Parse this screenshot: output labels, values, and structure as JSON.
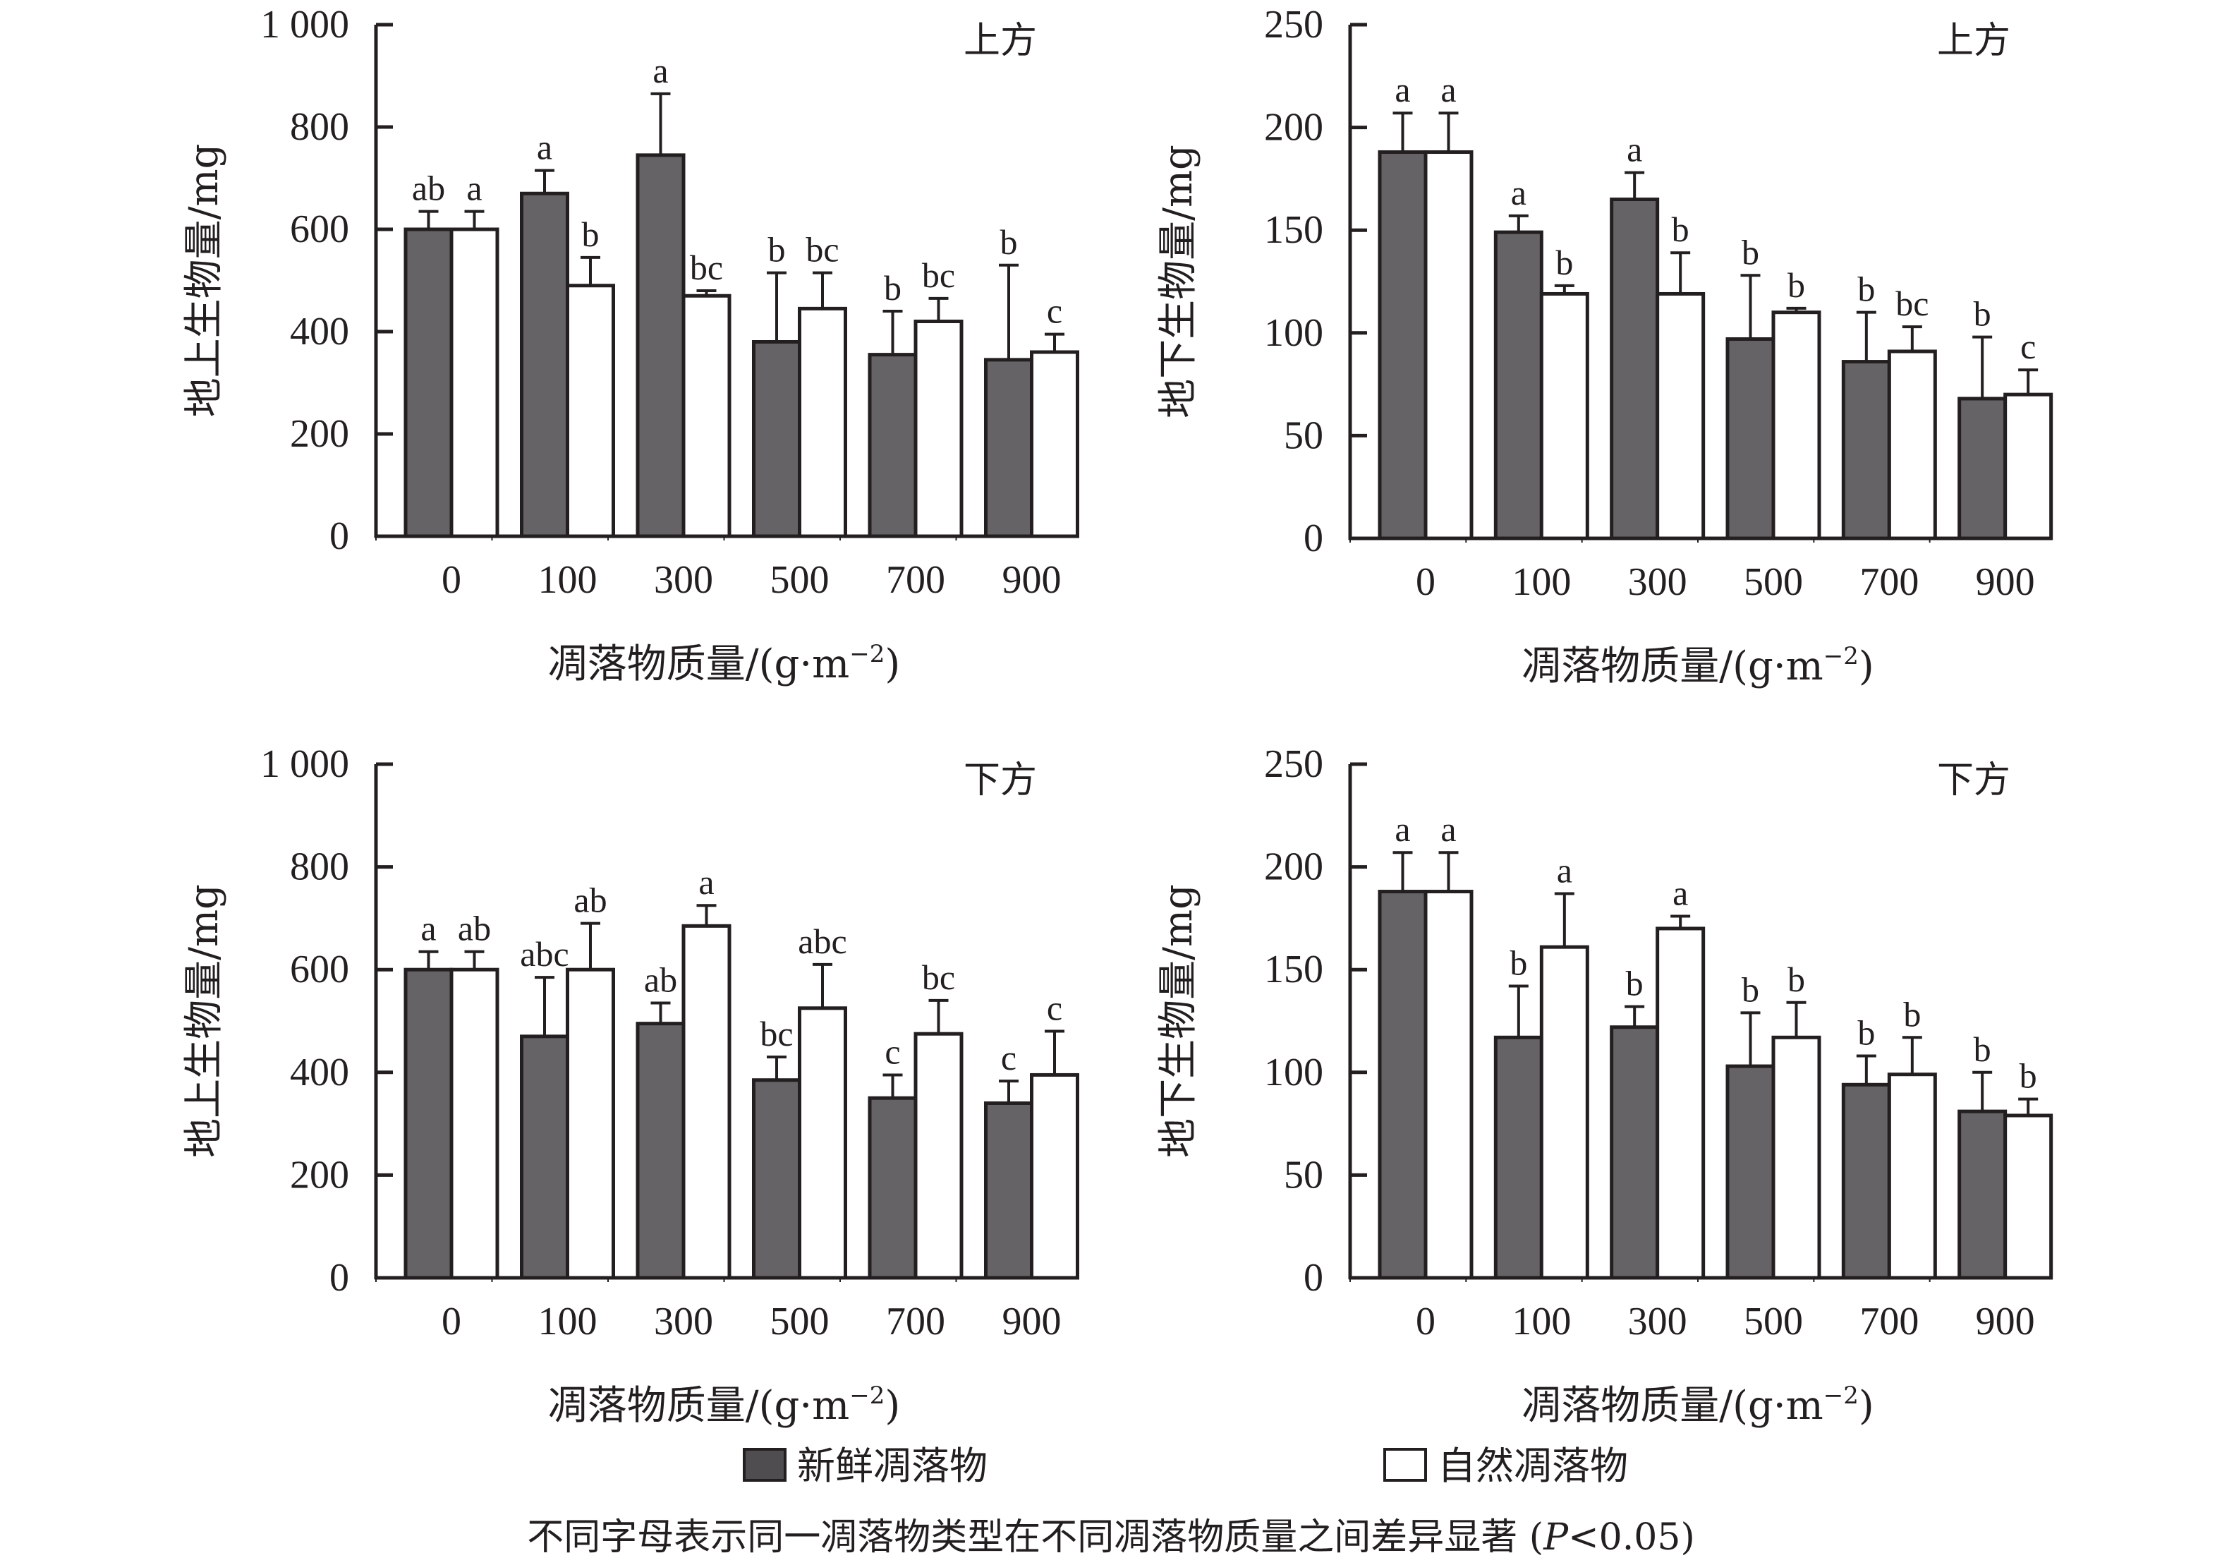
{
  "colors": {
    "fresh": "#656365",
    "natural": "#ffffff",
    "stroke": "#231f20"
  },
  "legend": {
    "items": [
      {
        "label": "新鲜凋落物",
        "color": "#656365"
      },
      {
        "label": "自然凋落物",
        "color": "#ffffff"
      }
    ]
  },
  "note": {
    "text_main": "不同字母表示同一凋落物类型在不同凋落物质量之间差异显著 (",
    "p_symbol": "P",
    "text_tail": "<0.05)"
  },
  "chart_data": [
    {
      "type": "bar",
      "panel": "top-left",
      "title": "上方",
      "xlabel": "凋落物质量/(g·m⁻²)",
      "xlabel_main": "凋落物质量/(g·m",
      "xlabel_sup": "−2",
      "xlabel_close": ")",
      "ylabel": "地上生物量/mg",
      "ylim": [
        0,
        1000
      ],
      "yticks": [
        0,
        200,
        400,
        600,
        800,
        1000
      ],
      "ytick_labels": [
        "0",
        "200",
        "400",
        "600",
        "800",
        "1 000"
      ],
      "categories": [
        "0",
        "100",
        "300",
        "500",
        "700",
        "900"
      ],
      "series": [
        {
          "name": "新鲜凋落物",
          "values": [
            600,
            670,
            745,
            380,
            355,
            345
          ],
          "error_upper": [
            635,
            715,
            865,
            515,
            440,
            530
          ],
          "letters": [
            "ab",
            "a",
            "a",
            "b",
            "b",
            "b"
          ]
        },
        {
          "name": "自然凋落物",
          "values": [
            600,
            490,
            470,
            445,
            420,
            360
          ],
          "error_upper": [
            635,
            545,
            480,
            515,
            465,
            395
          ],
          "letters": [
            "a",
            "b",
            "bc",
            "bc",
            "bc",
            "c"
          ]
        }
      ]
    },
    {
      "type": "bar",
      "panel": "top-right",
      "title": "上方",
      "xlabel": "凋落物质量/(g·m⁻²)",
      "xlabel_main": "凋落物质量/(g·m",
      "xlabel_sup": "−2",
      "xlabel_close": ")",
      "ylabel": "地下生物量/mg",
      "ylim": [
        0,
        250
      ],
      "yticks": [
        0,
        50,
        100,
        150,
        200,
        250
      ],
      "ytick_labels": [
        "0",
        "50",
        "100",
        "150",
        "200",
        "250"
      ],
      "categories": [
        "0",
        "100",
        "300",
        "500",
        "700",
        "900"
      ],
      "series": [
        {
          "name": "新鲜凋落物",
          "values": [
            188,
            149,
            165,
            97,
            86,
            68
          ],
          "error_upper": [
            207,
            157,
            178,
            128,
            110,
            98
          ],
          "letters": [
            "a",
            "a",
            "a",
            "b",
            "b",
            "b"
          ]
        },
        {
          "name": "自然凋落物",
          "values": [
            188,
            119,
            119,
            110,
            91,
            70
          ],
          "error_upper": [
            207,
            123,
            139,
            112,
            103,
            82
          ],
          "letters": [
            "a",
            "b",
            "b",
            "b",
            "bc",
            "c"
          ]
        }
      ]
    },
    {
      "type": "bar",
      "panel": "bottom-left",
      "title": "下方",
      "xlabel": "凋落物质量/(g·m⁻²)",
      "xlabel_main": "凋落物质量/(g·m",
      "xlabel_sup": "−2",
      "xlabel_close": ")",
      "ylabel": "地上生物量/mg",
      "ylim": [
        0,
        1000
      ],
      "yticks": [
        0,
        200,
        400,
        600,
        800,
        1000
      ],
      "ytick_labels": [
        "0",
        "200",
        "400",
        "600",
        "800",
        "1 000"
      ],
      "categories": [
        "0",
        "100",
        "300",
        "500",
        "700",
        "900"
      ],
      "series": [
        {
          "name": "新鲜凋落物",
          "values": [
            600,
            470,
            495,
            385,
            350,
            340
          ],
          "error_upper": [
            635,
            585,
            535,
            430,
            395,
            383
          ],
          "letters": [
            "a",
            "abc",
            "ab",
            "bc",
            "c",
            "c"
          ]
        },
        {
          "name": "自然凋落物",
          "values": [
            600,
            600,
            685,
            525,
            475,
            395
          ],
          "error_upper": [
            635,
            690,
            725,
            610,
            540,
            480
          ],
          "letters": [
            "ab",
            "ab",
            "a",
            "abc",
            "bc",
            "c"
          ]
        }
      ]
    },
    {
      "type": "bar",
      "panel": "bottom-right",
      "title": "下方",
      "xlabel": "凋落物质量/(g·m⁻²)",
      "xlabel_main": "凋落物质量/(g·m",
      "xlabel_sup": "−2",
      "xlabel_close": ")",
      "ylabel": "地下生物量/mg",
      "ylim": [
        0,
        250
      ],
      "yticks": [
        0,
        50,
        100,
        150,
        200,
        250
      ],
      "ytick_labels": [
        "0",
        "50",
        "100",
        "150",
        "200",
        "250"
      ],
      "categories": [
        "0",
        "100",
        "300",
        "500",
        "700",
        "900"
      ],
      "series": [
        {
          "name": "新鲜凋落物",
          "values": [
            188,
            117,
            122,
            103,
            94,
            81
          ],
          "error_upper": [
            207,
            142,
            132,
            129,
            108,
            100
          ],
          "letters": [
            "a",
            "b",
            "b",
            "b",
            "b",
            "b"
          ]
        },
        {
          "name": "自然凋落物",
          "values": [
            188,
            161,
            170,
            117,
            99,
            79
          ],
          "error_upper": [
            207,
            187,
            176,
            134,
            117,
            87
          ],
          "letters": [
            "a",
            "a",
            "a",
            "b",
            "b",
            "b"
          ]
        }
      ]
    }
  ]
}
